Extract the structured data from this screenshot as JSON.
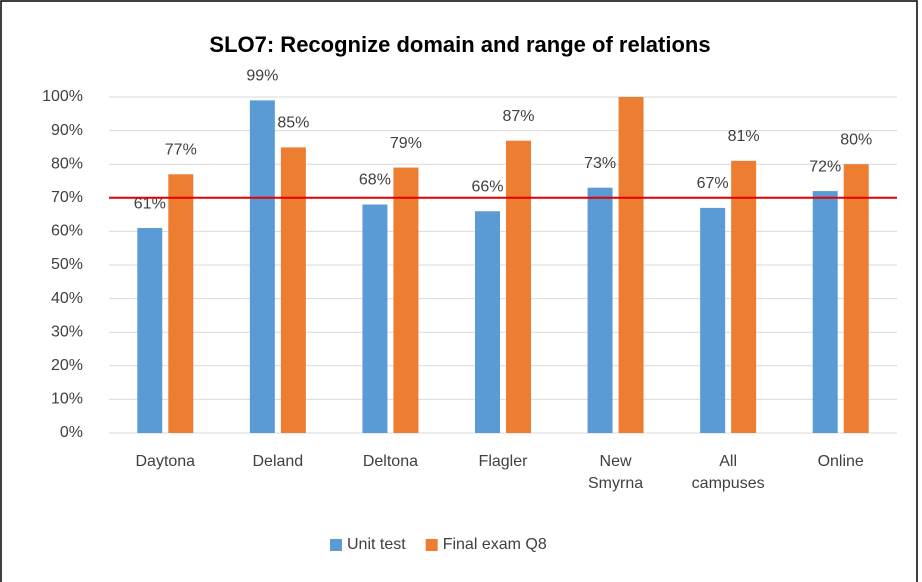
{
  "chart_data": {
    "type": "bar",
    "title": "SLO7: Recognize domain and range of relations",
    "categories": [
      "Daytona",
      "Deland",
      "Deltona",
      "Flagler",
      "New Smyrna",
      "All campuses",
      "Online"
    ],
    "series": [
      {
        "name": "Unit test",
        "color": "#5b9bd5",
        "values": [
          61,
          99,
          68,
          66,
          73,
          67,
          72
        ],
        "value_labels": [
          "61%",
          "99%",
          "68%",
          "66%",
          "73%",
          "67%",
          "72%"
        ]
      },
      {
        "name": "Final exam Q8",
        "color": "#ed7d31",
        "values": [
          77,
          85,
          79,
          87,
          100,
          81,
          80
        ],
        "value_labels": [
          "77%",
          "85%",
          "79%",
          "87%",
          null,
          "81%",
          "80%"
        ]
      }
    ],
    "reference_line": {
      "value": 70,
      "color": "#e00000"
    },
    "ylim": [
      0,
      100
    ],
    "yticks": [
      {
        "value": 0,
        "label": "0%"
      },
      {
        "value": 10,
        "label": "10%"
      },
      {
        "value": 20,
        "label": "20%"
      },
      {
        "value": 30,
        "label": "30%"
      },
      {
        "value": 40,
        "label": "40%"
      },
      {
        "value": 50,
        "label": "50%"
      },
      {
        "value": 60,
        "label": "60%"
      },
      {
        "value": 70,
        "label": "70%"
      },
      {
        "value": 80,
        "label": "80%"
      },
      {
        "value": 90,
        "label": "90%"
      },
      {
        "value": 100,
        "label": "100%"
      }
    ],
    "grid": true,
    "legend": "bottom"
  }
}
